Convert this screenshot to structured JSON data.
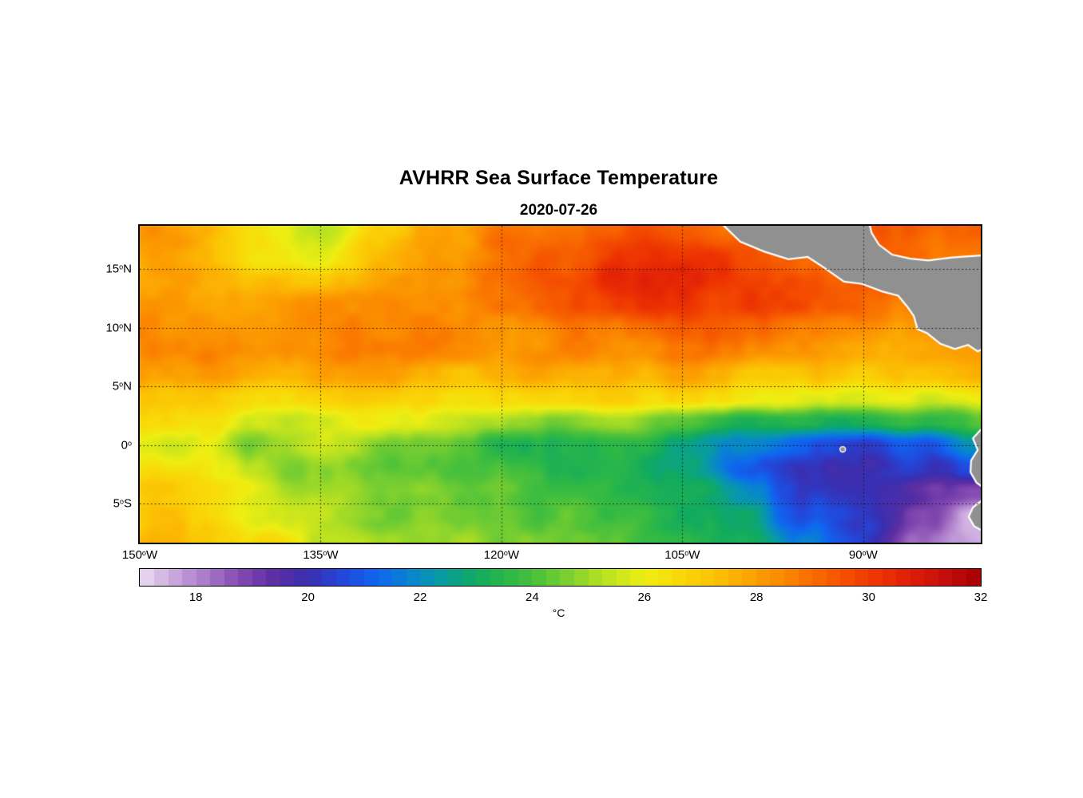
{
  "title": "AVHRR Sea Surface Temperature",
  "subtitle": "2020-07-26",
  "land_color": "#909090",
  "coast_color": "#FFFFFF",
  "grid_color": "#111111",
  "axes": {
    "lon_range": [
      -150,
      -80.25
    ],
    "lat_range": [
      -8.3,
      18.7
    ],
    "x_ticks": [
      {
        "value": -150,
        "num": "150",
        "sup": "o",
        "dir": "W"
      },
      {
        "value": -135,
        "num": "135",
        "sup": "o",
        "dir": "W"
      },
      {
        "value": -120,
        "num": "120",
        "sup": "o",
        "dir": "W"
      },
      {
        "value": -105,
        "num": "105",
        "sup": "o",
        "dir": "W"
      },
      {
        "value": -90,
        "num": "90",
        "sup": "o",
        "dir": "W"
      }
    ],
    "y_ticks": [
      {
        "value": 15,
        "num": "15",
        "sup": "o",
        "dir": "N"
      },
      {
        "value": 10,
        "num": "10",
        "sup": "o",
        "dir": "N"
      },
      {
        "value": 5,
        "num": "5",
        "sup": "o",
        "dir": "N"
      },
      {
        "value": 0,
        "num": "0",
        "sup": "o",
        "dir": ""
      },
      {
        "value": -5,
        "num": "5",
        "sup": "o",
        "dir": "S"
      }
    ]
  },
  "colorbar": {
    "label": "°C",
    "range": [
      17,
      32
    ],
    "ticks": [
      18,
      20,
      22,
      24,
      26,
      28,
      30,
      32
    ]
  },
  "chart_data": {
    "type": "heatmap",
    "title": "AVHRR Sea Surface Temperature",
    "date": "2020-07-26",
    "units": "°C",
    "xlabel_ticks": [
      "150°W",
      "135°W",
      "120°W",
      "105°W",
      "90°W"
    ],
    "ylabel_ticks": [
      "15°N",
      "10°N",
      "5°N",
      "0°",
      "5°S"
    ],
    "lons": [
      -150,
      -145,
      -140,
      -135,
      -130,
      -125,
      -120,
      -115,
      -110,
      -105,
      -100,
      -95,
      -90,
      -85,
      -80
    ],
    "lats": [
      18.7,
      16,
      14,
      12,
      10,
      8,
      6,
      4,
      2,
      0,
      -2,
      -4,
      -6,
      -8.3
    ],
    "sst": [
      [
        28.2,
        27.6,
        26.2,
        25.4,
        27.2,
        28.2,
        28.6,
        29.0,
        29.4,
        29.2,
        29.0,
        29.0,
        29.2,
        29.3,
        29.0
      ],
      [
        28.0,
        27.6,
        26.5,
        26.0,
        27.6,
        28.2,
        28.7,
        29.4,
        30.0,
        30.2,
        29.8,
        29.2,
        29.0,
        29.0,
        28.8
      ],
      [
        28.0,
        28.0,
        27.6,
        27.2,
        28.0,
        28.4,
        29.0,
        29.6,
        30.4,
        30.4,
        30.0,
        29.6,
        29.4,
        29.0,
        29.0
      ],
      [
        28.4,
        28.2,
        28.0,
        28.0,
        28.4,
        28.6,
        29.0,
        29.4,
        30.0,
        30.3,
        30.0,
        29.4,
        29.0,
        28.6,
        28.6
      ],
      [
        28.6,
        28.4,
        28.2,
        28.4,
        28.5,
        28.5,
        28.5,
        28.6,
        29.0,
        29.2,
        29.0,
        28.6,
        28.4,
        28.0,
        28.0
      ],
      [
        28.8,
        28.6,
        28.5,
        28.5,
        28.5,
        28.4,
        28.2,
        28.4,
        28.6,
        28.6,
        28.4,
        28.2,
        27.8,
        27.6,
        27.8
      ],
      [
        28.2,
        28.0,
        27.8,
        27.8,
        27.8,
        27.6,
        27.5,
        27.6,
        27.8,
        27.8,
        27.5,
        27.2,
        27.0,
        27.0,
        27.4
      ],
      [
        27.2,
        26.8,
        26.8,
        26.8,
        26.8,
        26.6,
        26.5,
        26.6,
        27.0,
        26.6,
        26.2,
        26.0,
        25.8,
        25.6,
        26.2
      ],
      [
        26.6,
        26.2,
        25.8,
        25.6,
        26.0,
        25.6,
        25.2,
        24.4,
        25.2,
        24.2,
        23.2,
        23.4,
        23.2,
        23.6,
        24.4
      ],
      [
        26.0,
        25.5,
        24.8,
        25.2,
        24.6,
        24.2,
        23.6,
        23.5,
        23.6,
        23.1,
        22.0,
        20.8,
        20.4,
        21.0,
        22.6
      ],
      [
        26.5,
        26.0,
        25.2,
        24.6,
        24.2,
        24.0,
        24.0,
        23.6,
        23.5,
        23.0,
        21.0,
        20.2,
        19.8,
        20.4,
        21.0
      ],
      [
        27.0,
        26.6,
        25.6,
        25.0,
        24.6,
        24.5,
        24.2,
        24.0,
        23.6,
        23.4,
        22.0,
        20.6,
        19.9,
        19.4,
        19.0
      ],
      [
        27.5,
        27.0,
        26.0,
        25.2,
        24.6,
        24.5,
        24.4,
        24.2,
        24.0,
        23.5,
        22.6,
        21.0,
        20.0,
        18.6,
        17.6
      ],
      [
        27.6,
        27.2,
        26.6,
        25.6,
        25.0,
        25.0,
        24.6,
        24.5,
        24.2,
        23.6,
        23.0,
        21.6,
        20.2,
        18.2,
        17.2
      ]
    ],
    "colormap": [
      [
        17.0,
        "#EADDF2"
      ],
      [
        17.6,
        "#C9A6DC"
      ],
      [
        18.2,
        "#A878C8"
      ],
      [
        18.8,
        "#8248B0"
      ],
      [
        19.4,
        "#5C2EA2"
      ],
      [
        20.0,
        "#3A2EB0"
      ],
      [
        20.6,
        "#2346D8"
      ],
      [
        21.2,
        "#1064F0"
      ],
      [
        21.8,
        "#0884D0"
      ],
      [
        22.4,
        "#089CA0"
      ],
      [
        23.0,
        "#10AA60"
      ],
      [
        23.6,
        "#2EB846"
      ],
      [
        24.2,
        "#55C438"
      ],
      [
        24.8,
        "#8CD42C"
      ],
      [
        25.4,
        "#C2E41E"
      ],
      [
        26.0,
        "#EEEE12"
      ],
      [
        26.6,
        "#F9D908"
      ],
      [
        27.2,
        "#FBC404"
      ],
      [
        27.8,
        "#FCA802"
      ],
      [
        28.4,
        "#FB8C00"
      ],
      [
        29.0,
        "#F96C00"
      ],
      [
        29.6,
        "#F44E00"
      ],
      [
        30.2,
        "#EC3202"
      ],
      [
        30.8,
        "#DC1C08"
      ],
      [
        31.4,
        "#C40C0C"
      ],
      [
        32.0,
        "#A40000"
      ]
    ],
    "land_polygons": {
      "central_america": [
        [
          -101.8,
          18.95
        ],
        [
          -100.2,
          17.35
        ],
        [
          -98.2,
          16.5
        ],
        [
          -96.2,
          15.85
        ],
        [
          -94.6,
          16.05
        ],
        [
          -93.2,
          15.1
        ],
        [
          -91.6,
          13.95
        ],
        [
          -90.1,
          13.75
        ],
        [
          -88.4,
          13.1
        ],
        [
          -87.1,
          12.75
        ],
        [
          -86.3,
          11.75
        ],
        [
          -85.8,
          11.0
        ],
        [
          -85.5,
          9.9
        ],
        [
          -84.7,
          9.55
        ],
        [
          -83.6,
          8.65
        ],
        [
          -82.4,
          8.2
        ],
        [
          -81.3,
          8.55
        ],
        [
          -80.5,
          8.0
        ],
        [
          -79.9,
          8.3
        ],
        [
          -79.9,
          16.2
        ],
        [
          -82.6,
          16.0
        ],
        [
          -84.6,
          15.75
        ],
        [
          -86.1,
          15.9
        ],
        [
          -87.6,
          16.25
        ],
        [
          -88.7,
          17.1
        ],
        [
          -89.3,
          18.1
        ],
        [
          -89.5,
          18.95
        ]
      ],
      "south_america_north": [
        [
          -79.9,
          1.7
        ],
        [
          -80.9,
          0.6
        ],
        [
          -80.5,
          -0.4
        ],
        [
          -81.05,
          -1.3
        ],
        [
          -81.1,
          -2.3
        ],
        [
          -80.6,
          -3.2
        ],
        [
          -79.9,
          -3.7
        ]
      ],
      "south_america_south": [
        [
          -79.9,
          -4.5
        ],
        [
          -80.9,
          -5.3
        ],
        [
          -81.25,
          -6.1
        ],
        [
          -80.8,
          -6.9
        ],
        [
          -79.9,
          -7.4
        ]
      ],
      "galapagos": [
        -91.7,
        -0.35
      ]
    }
  }
}
